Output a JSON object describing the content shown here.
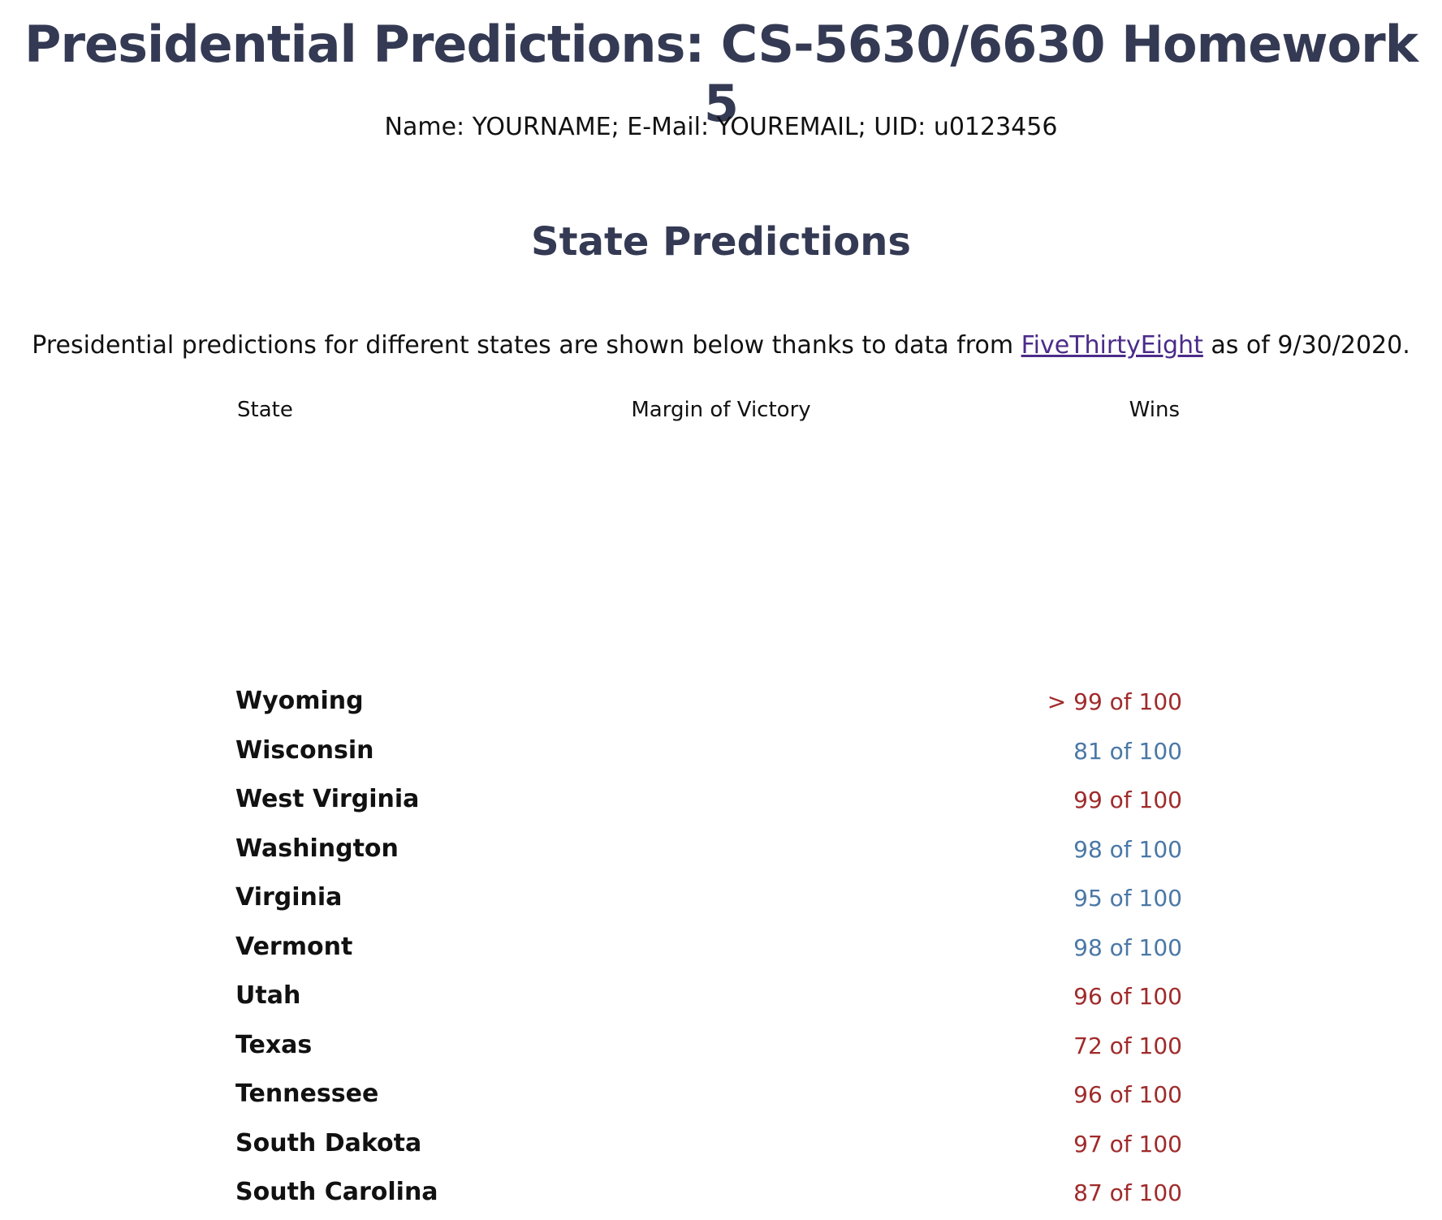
{
  "header": {
    "title": "Presidential Predictions: CS-5630/6630 Homework 5",
    "subtitle": "Name: YOURNAME; E-Mail: YOUREMAIL; UID: u0123456"
  },
  "section": {
    "title": "State Predictions",
    "intro_before": "Presidential predictions for different states are shown below thanks to data from ",
    "intro_link": "FiveThirtyEight",
    "intro_after": " as of 9/30/2020."
  },
  "table": {
    "headers": {
      "state": "State",
      "margin": "Margin of Victory",
      "wins": "Wins"
    },
    "rows": [
      {
        "state": "Wyoming",
        "wins": "> 99 of 100",
        "party": "rep"
      },
      {
        "state": "Wisconsin",
        "wins": "81 of 100",
        "party": "dem"
      },
      {
        "state": "West Virginia",
        "wins": "99 of 100",
        "party": "rep"
      },
      {
        "state": "Washington",
        "wins": "98 of 100",
        "party": "dem"
      },
      {
        "state": "Virginia",
        "wins": "95 of 100",
        "party": "dem"
      },
      {
        "state": "Vermont",
        "wins": "98 of 100",
        "party": "dem"
      },
      {
        "state": "Utah",
        "wins": "96 of 100",
        "party": "rep"
      },
      {
        "state": "Texas",
        "wins": "72 of 100",
        "party": "rep"
      },
      {
        "state": "Tennessee",
        "wins": "96 of 100",
        "party": "rep"
      },
      {
        "state": "South Dakota",
        "wins": "97 of 100",
        "party": "rep"
      },
      {
        "state": "South Carolina",
        "wins": "87 of 100",
        "party": "rep"
      }
    ]
  },
  "colors": {
    "title": "#343a53",
    "republican": "#a02b2b",
    "democrat": "#4a78a6",
    "link": "#4b2b8a"
  }
}
